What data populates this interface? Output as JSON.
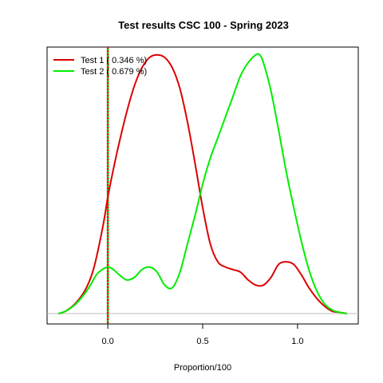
{
  "chart_data": {
    "type": "line",
    "title": "Test results CSC 100 - Spring 2023",
    "xlabel": "Proportion/100",
    "ylabel": "",
    "xlim": [
      -0.32,
      1.32
    ],
    "ylim": [
      -0.04,
      1.03
    ],
    "x_ticks": [
      0.0,
      0.5,
      1.0
    ],
    "x_tick_labels": [
      "0.0",
      "0.5",
      "1.0"
    ],
    "baseline": 0,
    "baseline_color": "#bebebe",
    "vline": {
      "x": 0.0,
      "colors": [
        "#ff0000",
        "#00cc00"
      ]
    },
    "legend": {
      "position": "top-left"
    },
    "series": [
      {
        "name": "Test 1 ( 0.346 %)",
        "color": "#dd0000",
        "x": [
          -0.26,
          -0.22,
          -0.17,
          -0.12,
          -0.08,
          -0.05,
          -0.02,
          0.0,
          0.03,
          0.06,
          0.1,
          0.14,
          0.18,
          0.22,
          0.26,
          0.3,
          0.34,
          0.38,
          0.42,
          0.46,
          0.5,
          0.54,
          0.58,
          0.62,
          0.66,
          0.7,
          0.74,
          0.78,
          0.82,
          0.86,
          0.9,
          0.94,
          0.98,
          1.02,
          1.06,
          1.1,
          1.14,
          1.18,
          1.22,
          1.26
        ],
        "y": [
          0.0,
          0.01,
          0.04,
          0.09,
          0.16,
          0.25,
          0.36,
          0.45,
          0.56,
          0.66,
          0.78,
          0.88,
          0.95,
          0.99,
          1.0,
          0.99,
          0.95,
          0.87,
          0.74,
          0.58,
          0.41,
          0.27,
          0.2,
          0.18,
          0.17,
          0.16,
          0.13,
          0.11,
          0.11,
          0.14,
          0.19,
          0.2,
          0.19,
          0.15,
          0.1,
          0.06,
          0.03,
          0.01,
          0.005,
          0.0
        ]
      },
      {
        "name": "Test 2 ( 0.679 %)",
        "color": "#00ee00",
        "x": [
          -0.26,
          -0.22,
          -0.18,
          -0.14,
          -0.1,
          -0.06,
          -0.03,
          0.0,
          0.03,
          0.06,
          0.1,
          0.14,
          0.18,
          0.22,
          0.26,
          0.3,
          0.34,
          0.38,
          0.42,
          0.46,
          0.5,
          0.54,
          0.58,
          0.62,
          0.66,
          0.7,
          0.74,
          0.78,
          0.8,
          0.82,
          0.86,
          0.9,
          0.94,
          0.98,
          1.02,
          1.06,
          1.1,
          1.14,
          1.18,
          1.22,
          1.26
        ],
        "y": [
          0.0,
          0.01,
          0.03,
          0.06,
          0.1,
          0.15,
          0.17,
          0.18,
          0.17,
          0.15,
          0.13,
          0.14,
          0.17,
          0.18,
          0.16,
          0.11,
          0.1,
          0.16,
          0.27,
          0.38,
          0.5,
          0.6,
          0.68,
          0.76,
          0.84,
          0.92,
          0.97,
          1.0,
          1.0,
          0.97,
          0.86,
          0.71,
          0.55,
          0.41,
          0.28,
          0.17,
          0.09,
          0.04,
          0.015,
          0.005,
          0.0
        ]
      }
    ]
  }
}
